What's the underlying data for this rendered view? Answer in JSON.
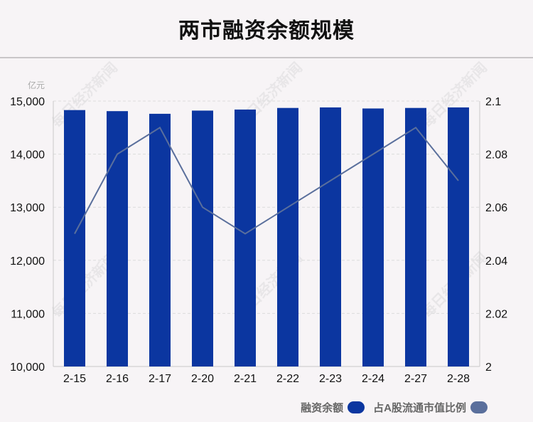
{
  "page": {
    "title": "两市融资余额规模",
    "watermark": "每日经济新闻"
  },
  "legend": {
    "items": [
      {
        "label": "融资余额",
        "color": "#0b36a0"
      },
      {
        "label": "占A股流通市值比例",
        "color": "#5a6f9c"
      }
    ]
  },
  "chart_data": {
    "type": "bar",
    "title": "两市融资余额规模",
    "categories": [
      "2-15",
      "2-16",
      "2-17",
      "2-20",
      "2-21",
      "2-22",
      "2-23",
      "2-24",
      "2-27",
      "2-28"
    ],
    "series": [
      {
        "name": "融资余额",
        "type": "bar",
        "axis": "left",
        "color": "#0b36a0",
        "values": [
          14830,
          14810,
          14760,
          14820,
          14840,
          14870,
          14880,
          14860,
          14870,
          14880
        ]
      },
      {
        "name": "占A股流通市值比例",
        "type": "line",
        "axis": "right",
        "color": "#5a6f9c",
        "values": [
          2.05,
          2.08,
          2.09,
          2.06,
          2.05,
          2.06,
          2.07,
          2.08,
          2.09,
          2.07
        ]
      }
    ],
    "y_left": {
      "unit": "亿元",
      "ylim": [
        10000,
        15000
      ],
      "ticks": [
        10000,
        11000,
        12000,
        13000,
        14000,
        15000
      ],
      "tick_labels": [
        "10,000",
        "11,000",
        "12,000",
        "13,000",
        "14,000",
        "15,000"
      ]
    },
    "y_right": {
      "ylim": [
        2.0,
        2.1
      ],
      "ticks": [
        2.0,
        2.02,
        2.04,
        2.06,
        2.08,
        2.1
      ],
      "tick_labels": [
        "2",
        "2.02",
        "2.04",
        "2.06",
        "2.08",
        "2.1"
      ]
    },
    "grid": true,
    "legend_position": "bottom-right"
  }
}
